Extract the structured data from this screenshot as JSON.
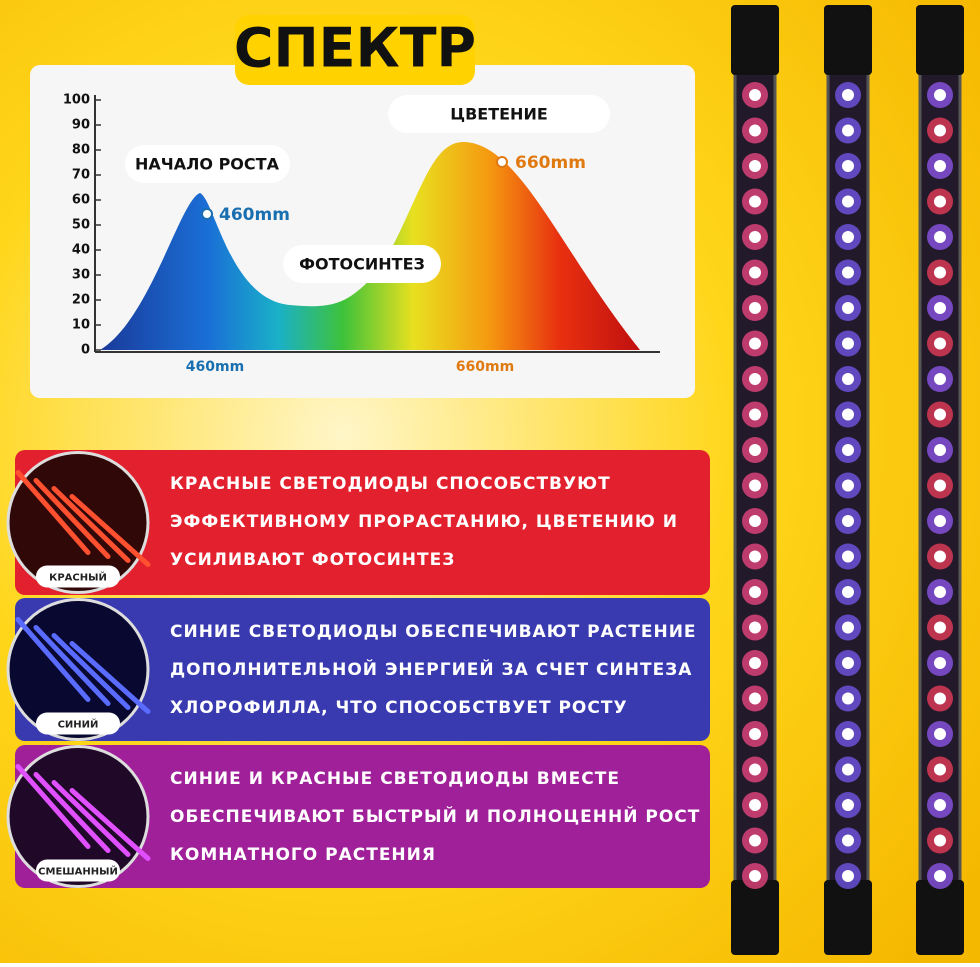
{
  "title": "СПЕКТР",
  "spectrum": {
    "yticks": [
      0,
      10,
      20,
      30,
      40,
      50,
      60,
      70,
      80,
      90,
      100
    ],
    "x_labels": [
      "460mm",
      "660mm"
    ],
    "growth_label": "НАЧАЛО РОСТА",
    "bloom_label": "ЦВЕТЕНИЕ",
    "photo_label": "ФОТОСИНТЕЗ",
    "peak_blue": "460mm",
    "peak_red": "660mm"
  },
  "panels": [
    {
      "tag": "КРАСНЫЙ",
      "lines": [
        "КРАСНЫЕ СВЕТОДИОДЫ СПОСОБСТВУЮТ",
        "ЭФФЕКТИВНОМУ ПРОРАСТАНИЮ, ЦВЕТЕНИЮ И",
        "УСИЛИВАЮТ ФОТОСИНТЕЗ"
      ]
    },
    {
      "tag": "СИНИЙ",
      "lines": [
        "СИНИЕ СВЕТОДИОДЫ ОБЕСПЕЧИВАЮТ РАСТЕНИЕ",
        "ДОПОЛНИТЕЛЬНОЙ ЭНЕРГИЕЙ ЗА СЧЕТ СИНТЕЗА",
        "ХЛОРОФИЛЛА, ЧТО СПОСОБСТВУЕТ РОСТУ"
      ]
    },
    {
      "tag": "СМЕШАННЫЙ",
      "lines": [
        "СИНИЕ И КРАСНЫЕ СВЕТОДИОДЫ ВМЕСТЕ",
        "ОБЕСПЕЧИВАЮТ БЫСТРЫЙ И ПОЛНОЦЕННЙ РОСТ",
        "КОМНАТНОГО РАСТЕНИЯ"
      ]
    }
  ]
}
